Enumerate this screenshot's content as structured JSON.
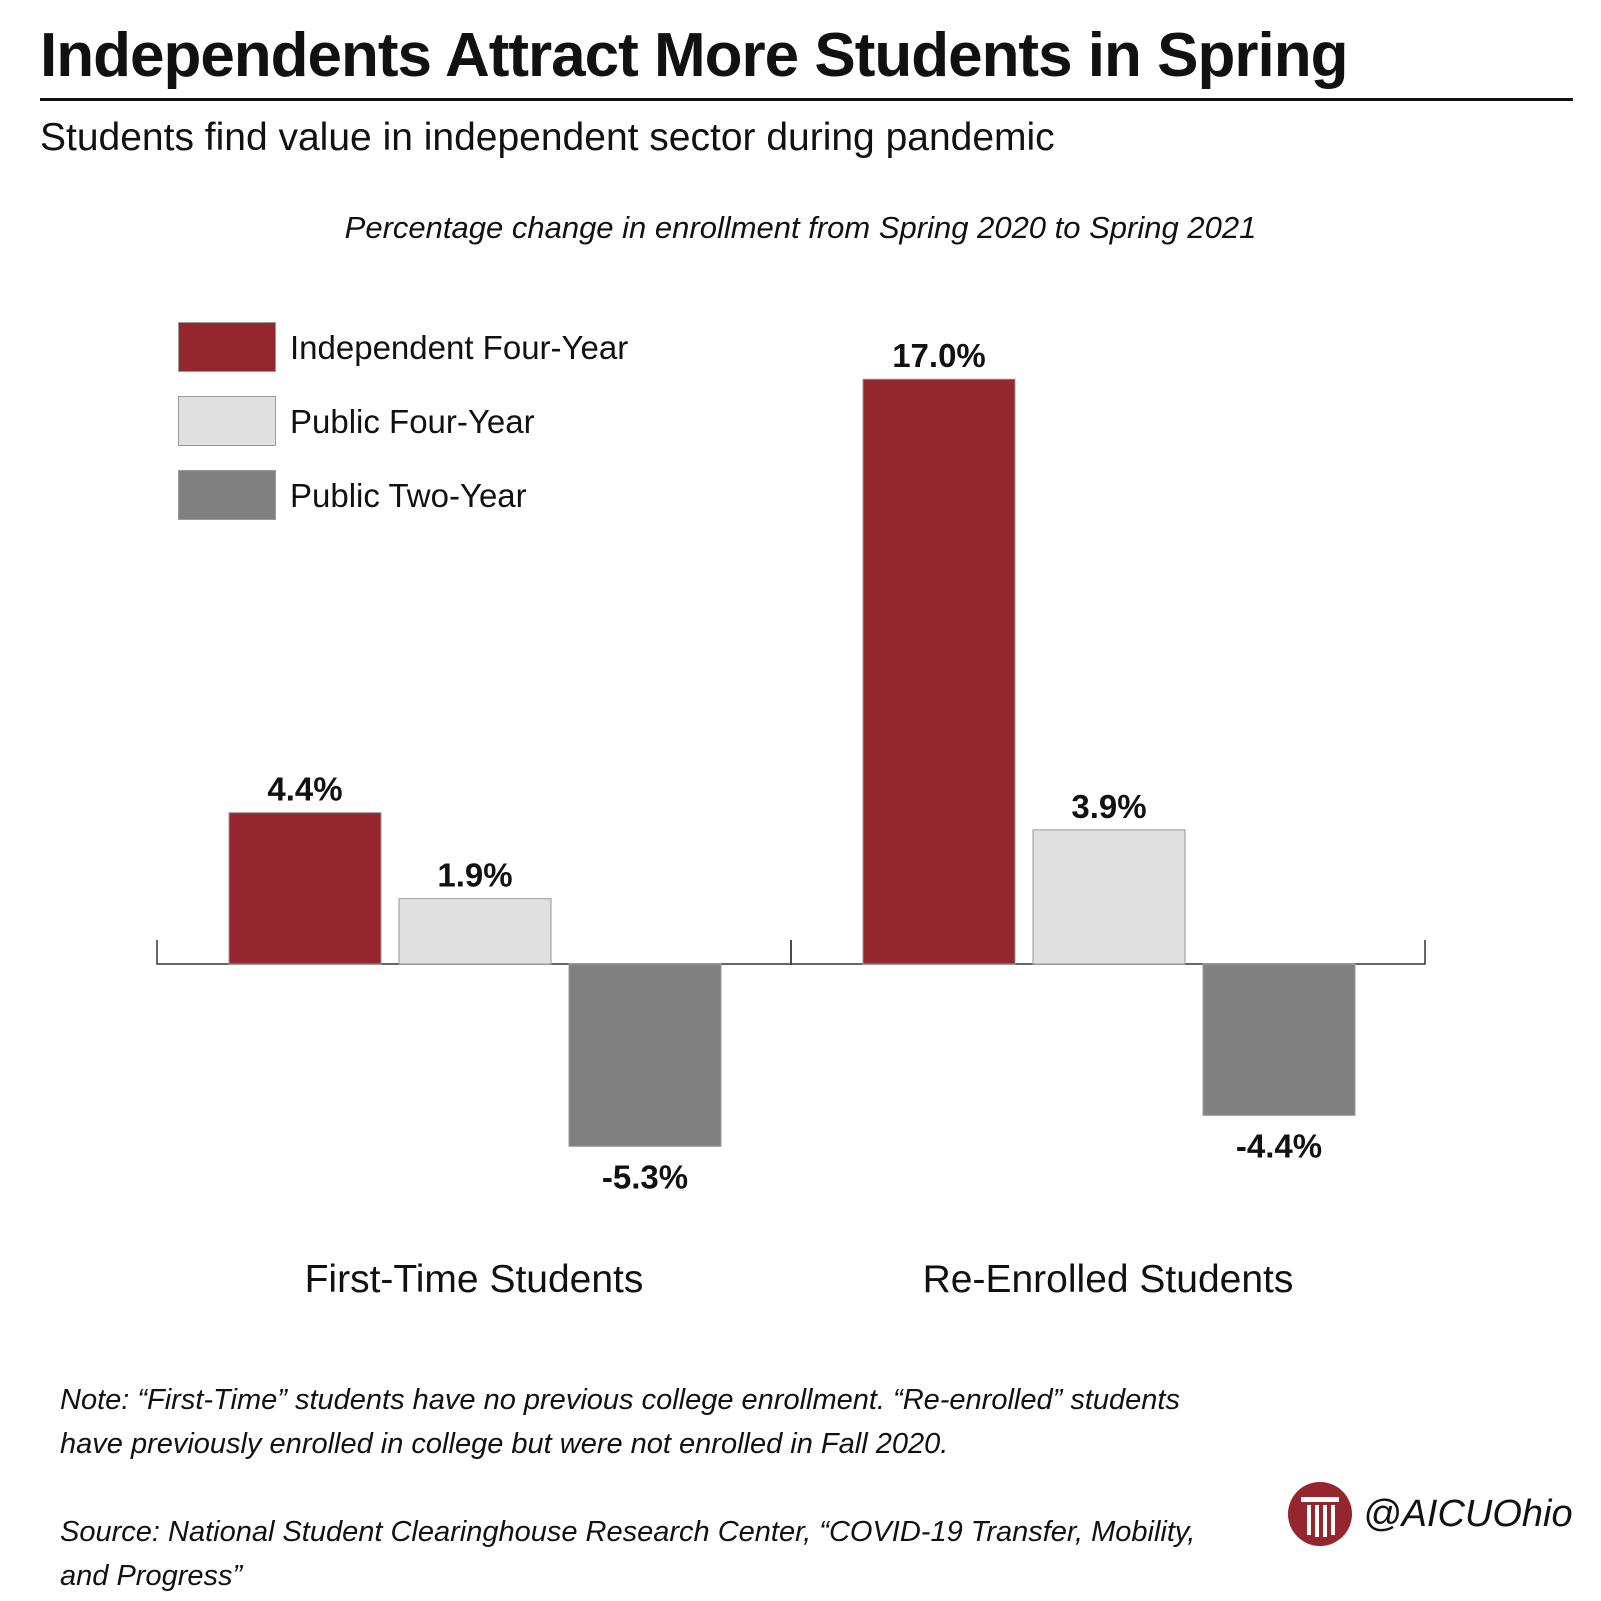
{
  "header": {
    "title": "Independents Attract More Students in Spring",
    "subtitle": "Students find value in independent sector during pandemic"
  },
  "chart_data": {
    "type": "bar",
    "title": "Percentage change in enrollment from Spring 2020 to Spring 2021",
    "categories": [
      "First-Time Students",
      "Re-Enrolled Students"
    ],
    "series": [
      {
        "name": "Independent Four-Year",
        "values": [
          4.4,
          17.0
        ],
        "labels": [
          "4.4%",
          "17.0%"
        ],
        "color": "#96262e"
      },
      {
        "name": "Public Four-Year",
        "values": [
          1.9,
          3.9
        ],
        "labels": [
          "1.9%",
          "3.9%"
        ],
        "color": "#e0e0e0"
      },
      {
        "name": "Public Two-Year",
        "values": [
          -5.3,
          -4.4
        ],
        "labels": [
          "-5.3%",
          "-4.4%"
        ],
        "color": "#808080"
      }
    ],
    "ylim": [
      -5.3,
      17.0
    ],
    "grid": false,
    "legend_position": "top-left"
  },
  "footer": {
    "note": "Note: “First-Time” students have no previous college enrollment. “Re-enrolled” students have  previously enrolled in college but were not enrolled in Fall 2020.",
    "source": "Source: National Student Clearinghouse Research Center, “COVID-19 Transfer, Mobility, and Progress”"
  },
  "brand": {
    "handle": "@AICUOhio",
    "logo_icon": "column-logo-icon",
    "logo_color": "#96262e"
  }
}
